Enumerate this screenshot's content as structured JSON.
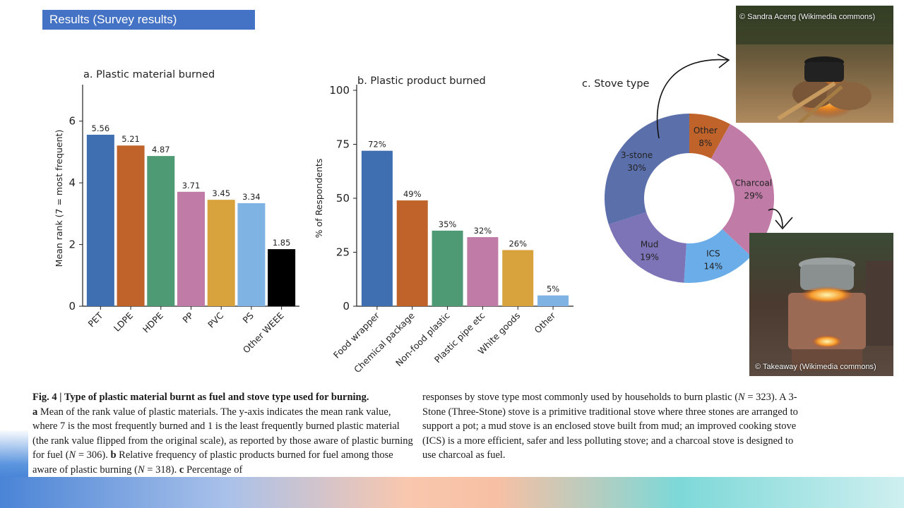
{
  "banner": {
    "title": "Results (Survey results)"
  },
  "chart_data": [
    {
      "type": "bar",
      "title": "a. Plastic material burned",
      "ylabel": "Mean rank (7 = most frequent)",
      "xlabel": "",
      "categories": [
        "PET",
        "LDPE",
        "HDPE",
        "PP",
        "PVC",
        "PS",
        "Other WEEE"
      ],
      "values": [
        5.56,
        5.21,
        4.87,
        3.71,
        3.45,
        3.34,
        1.85
      ],
      "value_labels": [
        "5.56",
        "5.21",
        "4.87",
        "3.71",
        "3.45",
        "3.34",
        "1.85"
      ],
      "colors": [
        "#3f6fb0",
        "#c0632b",
        "#4e9a74",
        "#c07ca7",
        "#d8a33c",
        "#7fb3e3",
        "#000000"
      ],
      "ylim": [
        0,
        7
      ],
      "yticks": [
        0,
        2,
        4,
        6
      ]
    },
    {
      "type": "bar",
      "title": "b. Plastic product burned",
      "ylabel": "% of Respondents",
      "xlabel": "",
      "categories": [
        "Food wrapper",
        "Chemical package",
        "Non-food plastic",
        "Plastic pipe etc",
        "White goods",
        "Other"
      ],
      "values": [
        72,
        49,
        35,
        32,
        26,
        5
      ],
      "value_labels": [
        "72%",
        "49%",
        "35%",
        "32%",
        "26%",
        "5%"
      ],
      "colors": [
        "#3f6fb0",
        "#c0632b",
        "#4e9a74",
        "#c07ca7",
        "#d8a33c",
        "#7fb3e3"
      ],
      "ylim": [
        0,
        100
      ],
      "yticks": [
        0,
        25,
        50,
        75,
        100
      ]
    },
    {
      "type": "pie",
      "title": "c. Stove type",
      "donut": true,
      "slices": [
        {
          "label": "Other",
          "value": 8,
          "pct": "8%",
          "color": "#c0632b"
        },
        {
          "label": "Charcoal",
          "value": 29,
          "pct": "29%",
          "color": "#c07ca7"
        },
        {
          "label": "ICS",
          "value": 14,
          "pct": "14%",
          "color": "#6aade8"
        },
        {
          "label": "Mud",
          "value": 19,
          "pct": "19%",
          "color": "#7d74b8"
        },
        {
          "label": "3-stone",
          "value": 30,
          "pct": "30%",
          "color": "#5b6fab"
        }
      ]
    }
  ],
  "photos": {
    "top_credit": "© Sandra Aceng (Wikimedia commons)",
    "bottom_credit": "© Takeaway (Wikimedia commons)"
  },
  "caption": {
    "fig_label": "Fig. 4 | Type of plastic material burnt as fuel and stove type used for burning.",
    "a_label": "a",
    "a_text_1": " Mean of the rank value of plastic materials. The y-axis indicates the mean rank value, where 7 is the most frequently burned and 1 is the least frequently burned plastic material (the rank value flipped from the original scale), as reported by those aware of plastic burning for fuel (",
    "n_a": "N",
    "a_text_2": " = 306). ",
    "b_label": "b",
    "b_text_1": " Relative frequency of plastic products burned for fuel among those aware of plastic burning (",
    "n_b": "N",
    "b_text_2": " = 318). ",
    "c_label": "c",
    "c_text_1": " Percentage of",
    "right_1": "responses by stove type most commonly used by households to burn plastic (",
    "n_c": "N",
    "right_2": " = 323). A 3-Stone (Three-Stone) stove is a primitive traditional stove where three stones are arranged to support a pot; a mud stove is an enclosed stove built from mud; an improved cooking stove (ICS) is a more efficient, safer and less polluting stove; and a charcoal stove is designed to use charcoal as fuel."
  }
}
